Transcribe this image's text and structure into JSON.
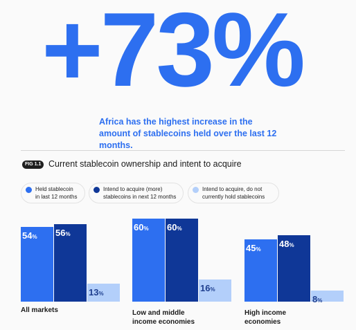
{
  "big_stat": "+73%",
  "headline": "Africa has the highest increase in the amount of stablecoins held over the last 12 months.",
  "figure_tag": "FIG 1.1",
  "colors": {
    "accent": "#2d6ff0",
    "held": "#2d6ff0",
    "intend_more": "#0f3797",
    "intend_none": "#b3cffa"
  },
  "chart_data": {
    "type": "bar",
    "title": "Current stablecoin ownership and intent to acquire",
    "categories": [
      "All markets",
      "Low and middle income economies",
      "High income economies"
    ],
    "series": [
      {
        "name": "Held stablecoin in last 12 months",
        "values": [
          54,
          60,
          45
        ],
        "labels": [
          "54%",
          "60%",
          "45%"
        ]
      },
      {
        "name": "Intend to acquire (more) stablecoins in next 12 months",
        "values": [
          56,
          60,
          48
        ],
        "labels": [
          "56%",
          "60%",
          "48%"
        ]
      },
      {
        "name": "Intend to acquire, do not currently hold stablecoins",
        "values": [
          13,
          16,
          8
        ],
        "labels": [
          "13%",
          "16%",
          "8%"
        ]
      }
    ],
    "ylim": [
      0,
      60
    ],
    "legend": "top",
    "grid": false
  }
}
